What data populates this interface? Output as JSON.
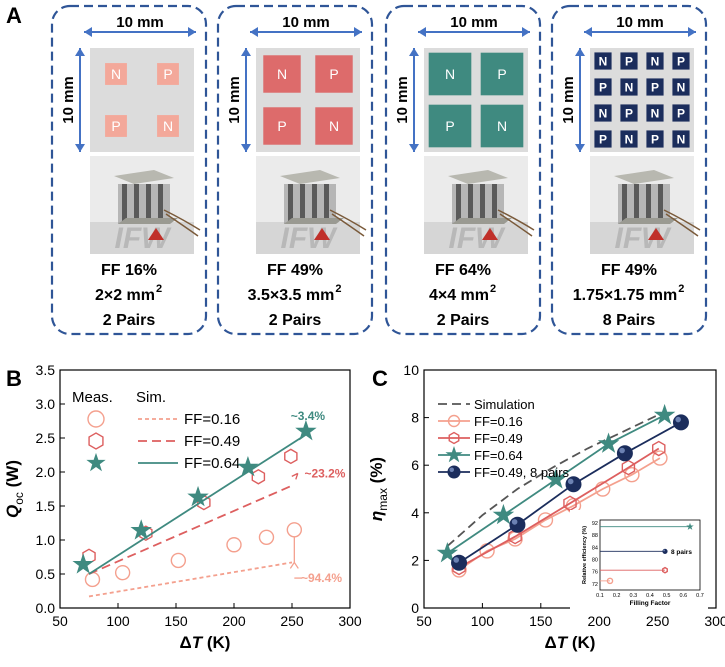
{
  "panel_a": {
    "label": "A",
    "cards": [
      {
        "width_label": "10 mm",
        "height_label": "10 mm",
        "pairs_grid": 2,
        "legs": [
          "N",
          "P",
          "P",
          "N"
        ],
        "leg_color": "#f3a89a",
        "text_color": "#ffffff",
        "ff": "FF 16%",
        "size": "2×2 mm",
        "pairs": "2 Pairs",
        "logo": "IFW"
      },
      {
        "width_label": "10 mm",
        "height_label": "10 mm",
        "pairs_grid": 2,
        "legs": [
          "N",
          "P",
          "P",
          "N"
        ],
        "leg_color": "#dd6b6b",
        "text_color": "#ffffff",
        "ff": "FF 49%",
        "size": "3.5×3.5 mm",
        "pairs": "2 Pairs",
        "logo": "IFW"
      },
      {
        "width_label": "10 mm",
        "height_label": "10 mm",
        "pairs_grid": 2,
        "legs": [
          "N",
          "P",
          "P",
          "N"
        ],
        "leg_color": "#3f8a80",
        "text_color": "#ffffff",
        "ff": "FF 64%",
        "size": "4×4 mm",
        "pairs": "2 Pairs",
        "logo": "IFW"
      },
      {
        "width_label": "10 mm",
        "height_label": "10 mm",
        "pairs_grid": 4,
        "legs": [
          "N",
          "P",
          "N",
          "P",
          "P",
          "N",
          "P",
          "N",
          "N",
          "P",
          "N",
          "P",
          "P",
          "N",
          "P",
          "N"
        ],
        "leg_color": "#1b2d5c",
        "text_color": "#ffffff",
        "ff": "FF 49%",
        "size": "1.75×1.75 mm",
        "pairs": "8 Pairs",
        "logo": "IFW"
      }
    ],
    "superscript": "2"
  },
  "chart_data": [
    {
      "panel": "B",
      "type": "scatter",
      "xlabel_prefix": "Δ",
      "xlabel_var": "T",
      "xlabel_unit": " (K)",
      "ylabel_var": "Q",
      "ylabel_sub": "oc",
      "ylabel_unit": " (W)",
      "xlim": [
        50,
        300
      ],
      "ylim": [
        0,
        3.5
      ],
      "xticks": [
        50,
        100,
        150,
        200,
        250,
        300
      ],
      "yticks": [
        0.0,
        0.5,
        1.0,
        1.5,
        2.0,
        2.5,
        3.0,
        3.5
      ],
      "legend_header": [
        "Meas.",
        "Sim."
      ],
      "series": [
        {
          "name": "FF=0.16",
          "color": "#f4a08e",
          "marker": "circle",
          "dash": "short",
          "meas_x": [
            78,
            104,
            152,
            200,
            228,
            252
          ],
          "meas_y": [
            0.42,
            0.52,
            0.7,
            0.93,
            1.04,
            1.15
          ],
          "sim_x": [
            75,
            250
          ],
          "sim_y": [
            0.17,
            0.67
          ]
        },
        {
          "name": "FF=0.49",
          "color": "#dd5f5f",
          "marker": "hexagon",
          "dash": "long",
          "meas_x": [
            75,
            124,
            174,
            221,
            249
          ],
          "meas_y": [
            0.76,
            1.1,
            1.55,
            1.93,
            2.23
          ],
          "sim_x": [
            75,
            250
          ],
          "sim_y": [
            0.5,
            1.8
          ]
        },
        {
          "name": "FF=0.64",
          "color": "#3f8a80",
          "marker": "star",
          "dash": "solid",
          "meas_x": [
            70,
            120,
            169,
            212,
            262
          ],
          "meas_y": [
            0.64,
            1.14,
            1.63,
            2.07,
            2.6
          ],
          "sim_x": [
            75,
            262
          ],
          "sim_y": [
            0.5,
            2.55
          ]
        }
      ],
      "annotations": [
        {
          "text": "~3.4%",
          "x": 262,
          "y": 2.82,
          "color": "#3f8a80"
        },
        {
          "text": "~23.2%",
          "x": 259,
          "y": 1.98,
          "color": "#dd5f5f"
        },
        {
          "text": "~94.4%",
          "x": 256,
          "y": 0.44,
          "color": "#f4a08e"
        }
      ]
    },
    {
      "panel": "C",
      "type": "line",
      "xlabel_prefix": "Δ",
      "xlabel_var": "T",
      "xlabel_unit": " (K)",
      "ylabel_var": "η",
      "ylabel_sub": "max",
      "ylabel_unit": " (%)",
      "xlim": [
        50,
        300
      ],
      "ylim": [
        0,
        10
      ],
      "xticks": [
        50,
        100,
        150,
        200,
        250,
        300
      ],
      "yticks": [
        0,
        2,
        4,
        6,
        8,
        10
      ],
      "series": [
        {
          "name": "Simulation",
          "color": "#555555",
          "marker": "none",
          "dash": "long",
          "x": [
            70,
            100,
            130,
            160,
            190,
            220,
            250
          ],
          "y": [
            2.6,
            3.9,
            5.0,
            5.9,
            6.7,
            7.4,
            8.1
          ]
        },
        {
          "name": "FF=0.16",
          "color": "#f4a08e",
          "marker": "circle",
          "dash": "solid",
          "x": [
            80,
            104,
            128,
            154,
            178,
            203,
            228,
            252
          ],
          "y": [
            1.6,
            2.4,
            2.9,
            3.7,
            4.3,
            5.0,
            5.6,
            6.3
          ]
        },
        {
          "name": "FF=0.49",
          "color": "#dd5f5f",
          "marker": "hexagon",
          "dash": "solid",
          "x": [
            80,
            128,
            175,
            225,
            251
          ],
          "y": [
            1.7,
            3.0,
            4.4,
            5.9,
            6.7
          ]
        },
        {
          "name": "FF=0.64",
          "color": "#3f8a80",
          "marker": "star",
          "dash": "solid",
          "x": [
            70,
            118,
            163,
            208,
            256
          ],
          "y": [
            2.3,
            3.9,
            5.4,
            6.9,
            8.1
          ]
        },
        {
          "name": "FF=0.49, 8 pairs",
          "color": "#1b2d5c",
          "marker": "sphere",
          "dash": "solid",
          "x": [
            80,
            130,
            178,
            222,
            270
          ],
          "y": [
            1.9,
            3.5,
            5.2,
            6.5,
            7.8
          ]
        }
      ],
      "inset": {
        "xlabel": "Filling Factor",
        "ylabel": "Relative efficiency (%)",
        "xticks": [
          0.1,
          0.2,
          0.3,
          0.4,
          0.5,
          0.6,
          0.7
        ],
        "yticks": [
          72,
          76,
          80,
          84,
          88,
          92
        ],
        "xlim": [
          0.1,
          0.7
        ],
        "ylim": [
          70,
          93
        ],
        "points": [
          {
            "x": 0.16,
            "y": 73.0,
            "color": "#f4a08e",
            "marker": "circle"
          },
          {
            "x": 0.49,
            "y": 76.5,
            "color": "#dd5f5f",
            "marker": "hexagon"
          },
          {
            "x": 0.49,
            "y": 82.7,
            "color": "#1b2d5c",
            "marker": "sphere",
            "label": "8 pairs"
          },
          {
            "x": 0.64,
            "y": 90.8,
            "color": "#3f8a80",
            "marker": "star"
          }
        ]
      }
    }
  ]
}
